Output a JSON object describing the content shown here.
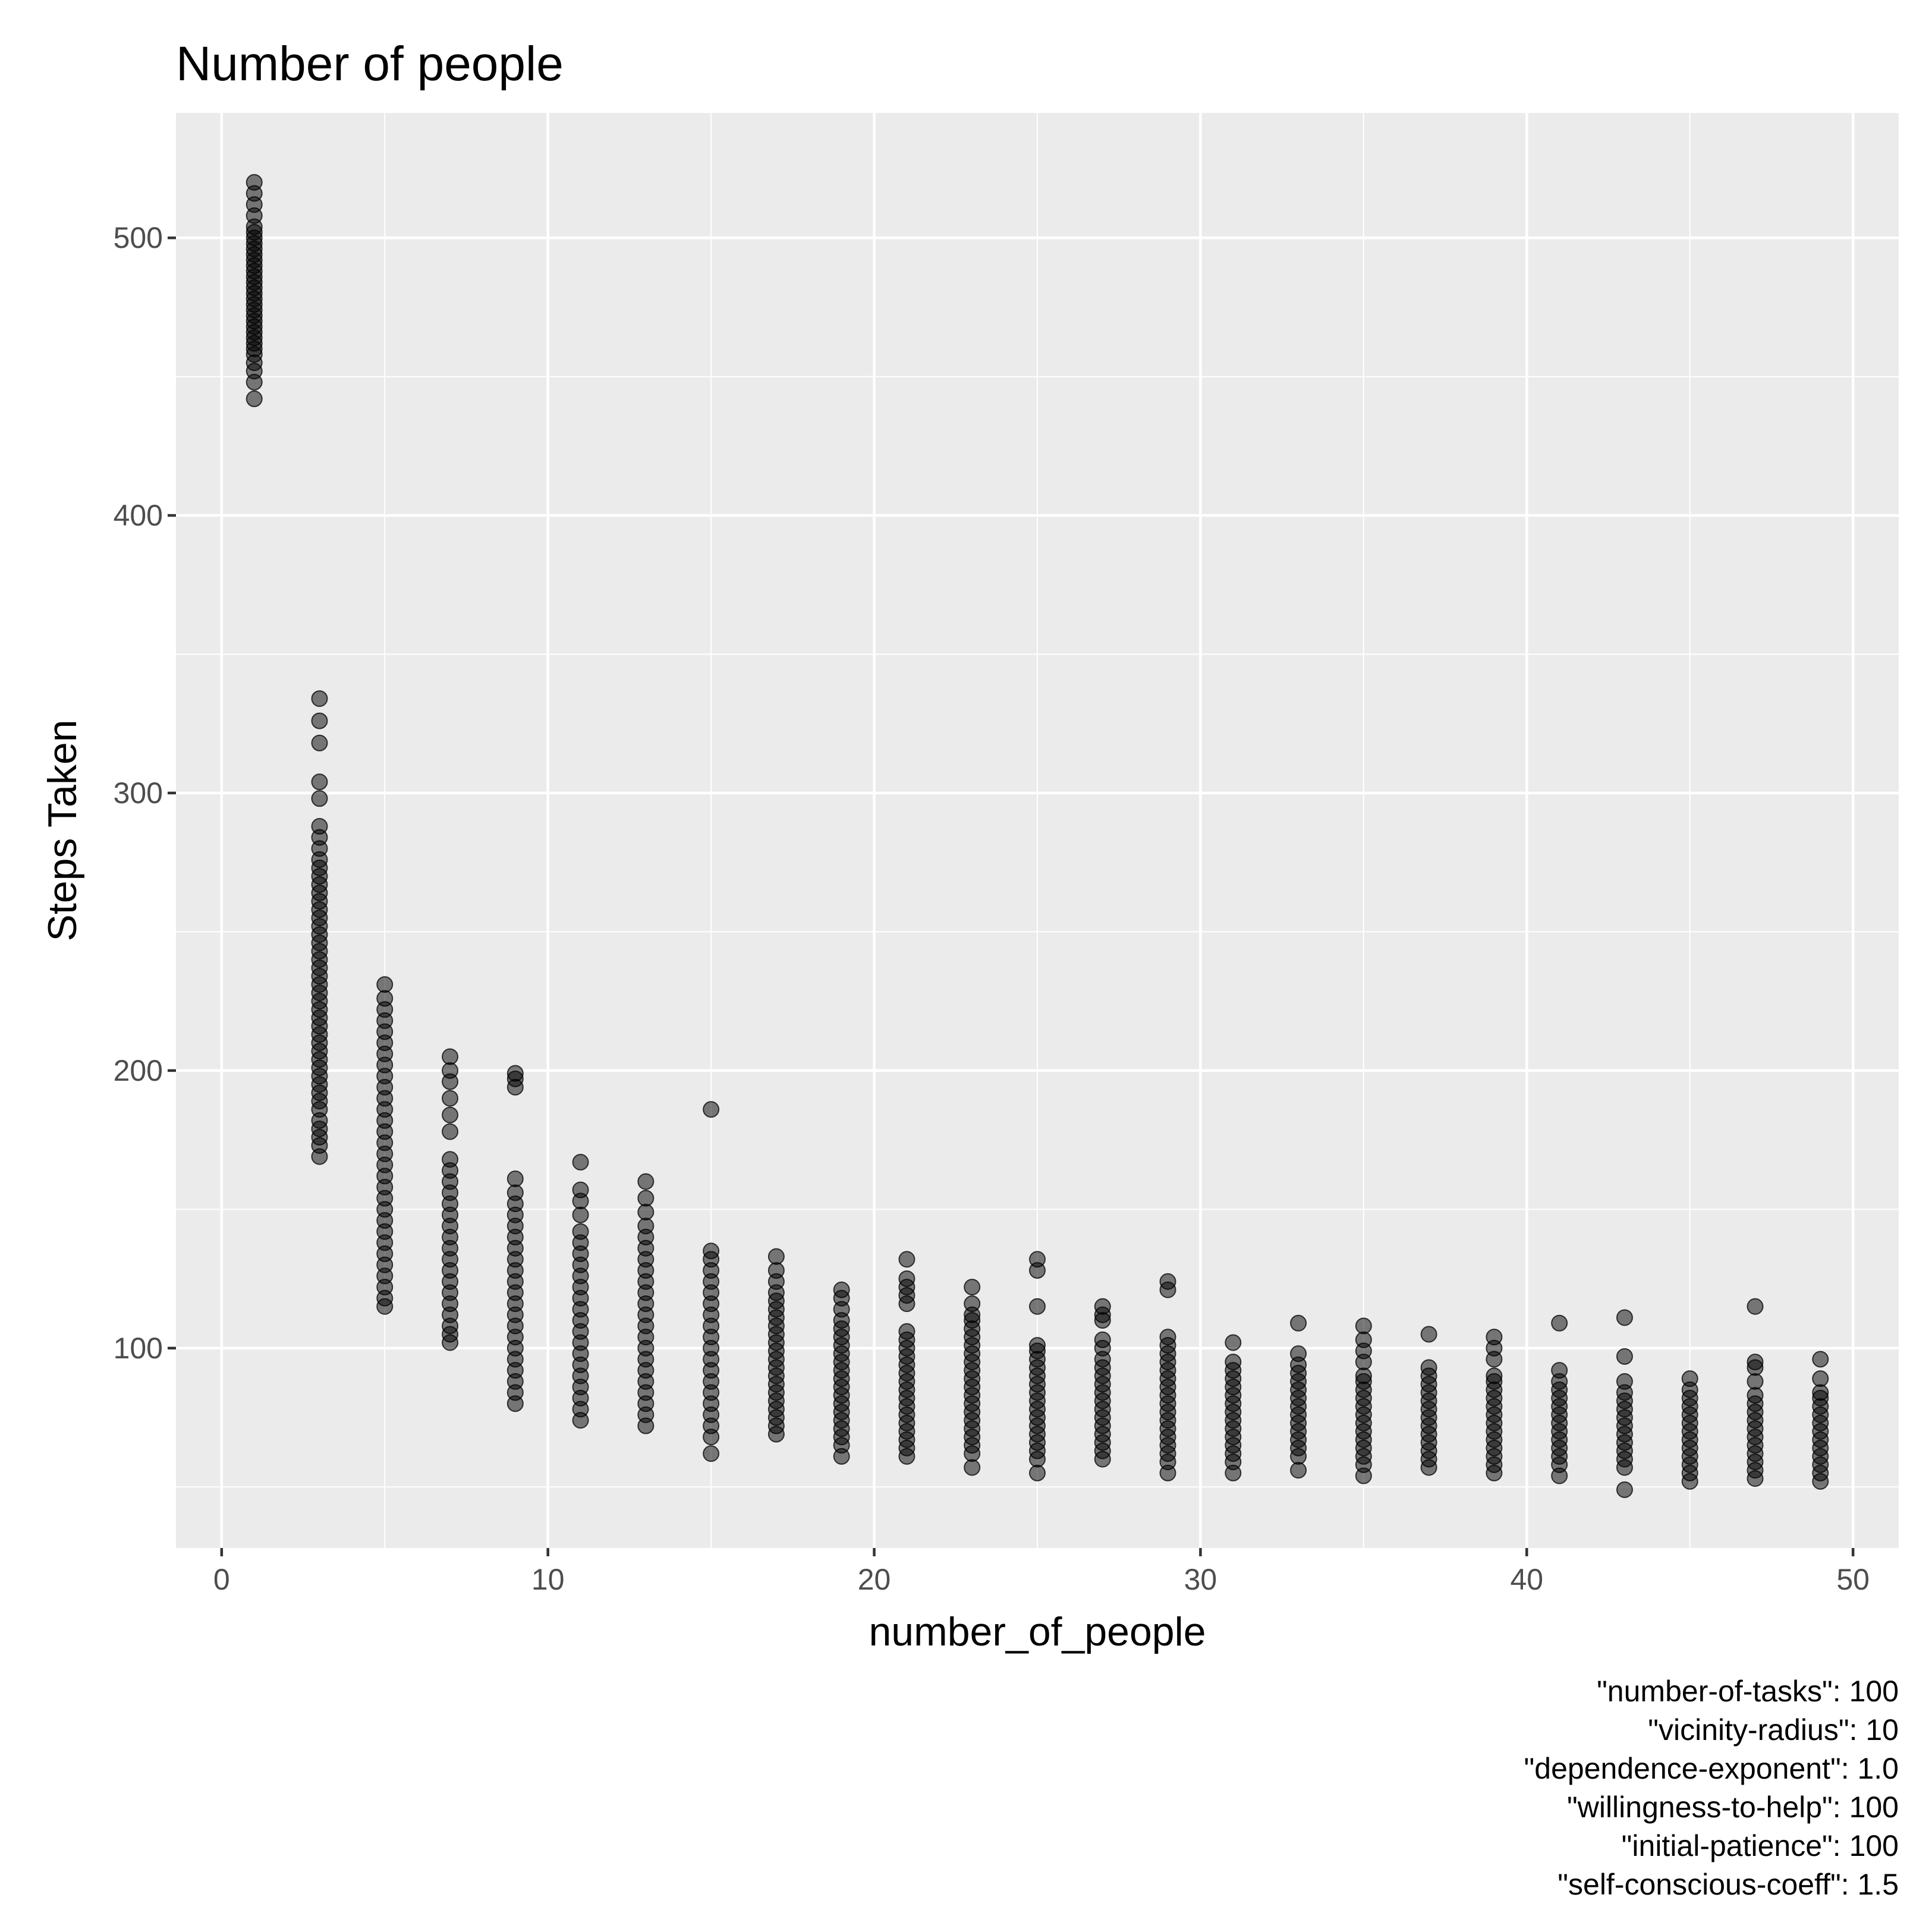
{
  "chart_data": {
    "type": "scatter",
    "title": "Number of people",
    "xlabel": "number_of_people",
    "ylabel": "Steps Taken",
    "xlim": [
      -1.4,
      51.4
    ],
    "ylim": [
      28,
      545
    ],
    "x_ticks": [
      0,
      10,
      20,
      30,
      40,
      50
    ],
    "y_ticks": [
      100,
      200,
      300,
      400,
      500
    ],
    "x_tick_labels": [
      "0",
      "10",
      "20",
      "30",
      "40",
      "50"
    ],
    "y_tick_labels": [
      "100",
      "200",
      "300",
      "400",
      "500"
    ],
    "grid": true,
    "point_color": "#000000",
    "point_opacity": 0.5,
    "panel_background": "#ebebeb",
    "grid_color": "#ffffff",
    "caption": [
      "\"number-of-tasks\": 100",
      "\"vicinity-radius\": 10",
      "\"dependence-exponent\": 1.0",
      "\"willingness-to-help\": 100",
      "\"initial-patience\": 100",
      "\"self-conscious-coeff\": 1.5"
    ],
    "series": [
      {
        "x": 1,
        "y": [
          442,
          448,
          452,
          455,
          458,
          460,
          462,
          464,
          466,
          468,
          470,
          472,
          474,
          476,
          478,
          480,
          482,
          484,
          486,
          488,
          490,
          492,
          494,
          496,
          498,
          500,
          502,
          504,
          508,
          512,
          516,
          520
        ]
      },
      {
        "x": 3,
        "y": [
          169,
          173,
          176,
          179,
          182,
          186,
          189,
          192,
          195,
          198,
          201,
          204,
          207,
          210,
          213,
          216,
          219,
          222,
          225,
          228,
          231,
          234,
          237,
          240,
          243,
          246,
          249,
          252,
          255,
          258,
          261,
          264,
          267,
          270,
          273,
          276,
          280,
          284,
          288,
          298,
          304,
          318,
          326,
          334
        ]
      },
      {
        "x": 5,
        "y": [
          115,
          118,
          122,
          126,
          130,
          134,
          138,
          142,
          146,
          150,
          154,
          158,
          162,
          166,
          170,
          174,
          178,
          182,
          186,
          190,
          194,
          198,
          202,
          206,
          210,
          214,
          218,
          222,
          226,
          231
        ]
      },
      {
        "x": 7,
        "y": [
          102,
          105,
          108,
          112,
          116,
          120,
          124,
          128,
          132,
          136,
          140,
          144,
          148,
          152,
          156,
          160,
          164,
          168,
          178,
          184,
          190,
          196,
          200,
          205
        ]
      },
      {
        "x": 9,
        "y": [
          80,
          84,
          88,
          92,
          96,
          100,
          104,
          108,
          112,
          116,
          120,
          124,
          128,
          132,
          136,
          140,
          144,
          148,
          152,
          156,
          161,
          194,
          197,
          199
        ]
      },
      {
        "x": 11,
        "y": [
          74,
          78,
          82,
          86,
          90,
          94,
          98,
          102,
          106,
          110,
          114,
          118,
          122,
          126,
          130,
          134,
          138,
          142,
          148,
          153,
          157,
          167
        ]
      },
      {
        "x": 13,
        "y": [
          72,
          76,
          80,
          84,
          88,
          92,
          96,
          100,
          104,
          108,
          112,
          116,
          120,
          124,
          128,
          132,
          136,
          140,
          144,
          149,
          154,
          160
        ]
      },
      {
        "x": 15,
        "y": [
          62,
          68,
          72,
          76,
          80,
          84,
          88,
          92,
          96,
          100,
          104,
          108,
          112,
          116,
          120,
          124,
          128,
          132,
          135,
          186
        ]
      },
      {
        "x": 17,
        "y": [
          69,
          72,
          75,
          78,
          81,
          84,
          87,
          90,
          93,
          96,
          99,
          102,
          105,
          108,
          111,
          114,
          117,
          120,
          124,
          128,
          133
        ]
      },
      {
        "x": 19,
        "y": [
          61,
          65,
          68,
          71,
          74,
          77,
          80,
          83,
          86,
          89,
          92,
          95,
          98,
          101,
          104,
          107,
          110,
          114,
          118,
          121
        ]
      },
      {
        "x": 21,
        "y": [
          61,
          64,
          67,
          70,
          73,
          76,
          79,
          82,
          85,
          88,
          91,
          94,
          97,
          100,
          103,
          106,
          116,
          119,
          122,
          125,
          132
        ]
      },
      {
        "x": 23,
        "y": [
          57,
          62,
          65,
          68,
          71,
          74,
          77,
          80,
          83,
          86,
          89,
          92,
          95,
          98,
          101,
          104,
          107,
          110,
          112,
          116,
          122
        ]
      },
      {
        "x": 25,
        "y": [
          55,
          60,
          63,
          66,
          69,
          72,
          75,
          78,
          81,
          84,
          87,
          90,
          93,
          96,
          99,
          101,
          115,
          128,
          132
        ]
      },
      {
        "x": 27,
        "y": [
          60,
          63,
          66,
          69,
          72,
          75,
          78,
          81,
          84,
          87,
          90,
          93,
          96,
          100,
          103,
          110,
          112,
          115
        ]
      },
      {
        "x": 29,
        "y": [
          55,
          59,
          62,
          65,
          68,
          71,
          74,
          77,
          80,
          83,
          86,
          89,
          92,
          95,
          98,
          101,
          104,
          121,
          124
        ]
      },
      {
        "x": 31,
        "y": [
          55,
          59,
          62,
          65,
          68,
          71,
          74,
          77,
          80,
          83,
          86,
          89,
          92,
          95,
          102
        ]
      },
      {
        "x": 33,
        "y": [
          56,
          61,
          64,
          67,
          70,
          73,
          76,
          79,
          82,
          85,
          88,
          91,
          94,
          98,
          109
        ]
      },
      {
        "x": 35,
        "y": [
          54,
          58,
          61,
          64,
          67,
          70,
          73,
          76,
          79,
          82,
          85,
          88,
          90,
          95,
          99,
          103,
          108
        ]
      },
      {
        "x": 37,
        "y": [
          57,
          60,
          63,
          66,
          69,
          72,
          75,
          78,
          81,
          84,
          87,
          90,
          93,
          105
        ]
      },
      {
        "x": 39,
        "y": [
          55,
          58,
          61,
          64,
          67,
          70,
          73,
          76,
          79,
          82,
          85,
          88,
          90,
          96,
          100,
          104
        ]
      },
      {
        "x": 41,
        "y": [
          54,
          58,
          61,
          64,
          67,
          70,
          73,
          76,
          79,
          82,
          85,
          88,
          92,
          109
        ]
      },
      {
        "x": 43,
        "y": [
          49,
          57,
          60,
          63,
          66,
          69,
          72,
          75,
          78,
          81,
          84,
          88,
          97,
          111
        ]
      },
      {
        "x": 45,
        "y": [
          52,
          55,
          58,
          61,
          64,
          67,
          70,
          73,
          76,
          79,
          82,
          85,
          89
        ]
      },
      {
        "x": 47,
        "y": [
          53,
          56,
          59,
          62,
          65,
          68,
          71,
          74,
          77,
          80,
          83,
          88,
          93,
          95,
          115
        ]
      },
      {
        "x": 49,
        "y": [
          52,
          55,
          58,
          61,
          64,
          67,
          70,
          73,
          76,
          79,
          82,
          84,
          89,
          96
        ]
      }
    ]
  }
}
